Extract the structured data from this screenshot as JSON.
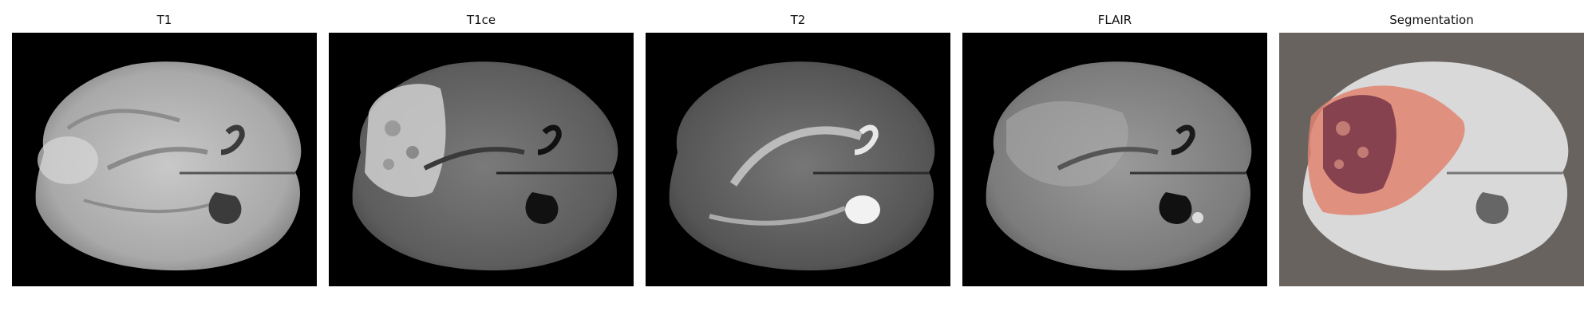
{
  "figure": {
    "panels": [
      {
        "title": "T1",
        "modality": "t1"
      },
      {
        "title": "T1ce",
        "modality": "t1ce"
      },
      {
        "title": "T2",
        "modality": "t2"
      },
      {
        "title": "FLAIR",
        "modality": "flair"
      },
      {
        "title": "Segmentation",
        "modality": "segmentation"
      }
    ],
    "colors": {
      "background_mri": "#000000",
      "background_segmentation": "#69635f",
      "edema_label": "#e0826e",
      "core_label": "#7d3a4a"
    }
  }
}
